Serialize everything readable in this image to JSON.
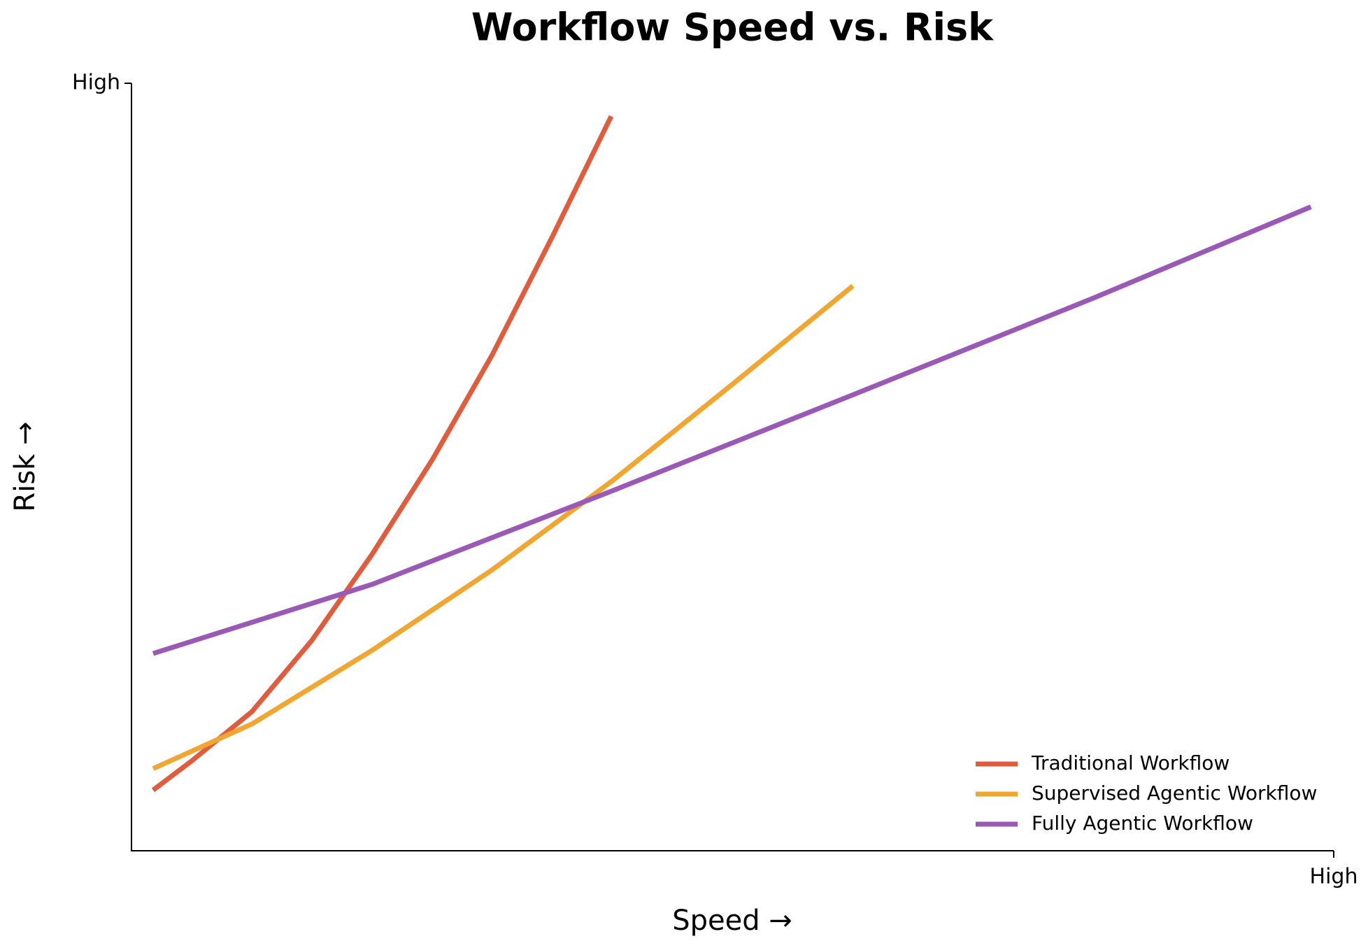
{
  "chart_data": {
    "type": "line",
    "title": "Workflow Speed vs. Risk",
    "xlabel": "Speed →",
    "ylabel": "Risk →",
    "xlim": [
      0,
      1
    ],
    "ylim": [
      0,
      1
    ],
    "xticks": [
      {
        "value": 1,
        "label": "High"
      }
    ],
    "yticks": [
      {
        "value": 1,
        "label": "High"
      }
    ],
    "grid": false,
    "legend": "lower right",
    "series": [
      {
        "name": "Traditional Workflow",
        "color": "#e05c3c",
        "x": [
          0.018,
          0.05,
          0.1,
          0.15,
          0.2,
          0.25,
          0.3,
          0.35,
          0.399
        ],
        "values": [
          0.079,
          0.117,
          0.181,
          0.274,
          0.386,
          0.509,
          0.646,
          0.8,
          0.957
        ]
      },
      {
        "name": "Supervised Agentic Workflow",
        "color": "#f0a630",
        "x": [
          0.018,
          0.1,
          0.2,
          0.3,
          0.4,
          0.5,
          0.6
        ],
        "values": [
          0.107,
          0.165,
          0.261,
          0.366,
          0.482,
          0.608,
          0.736
        ]
      },
      {
        "name": "Fully Agentic Workflow",
        "color": "#9b59b6",
        "x": [
          0.018,
          0.2,
          0.4,
          0.6,
          0.8,
          0.981
        ],
        "values": [
          0.257,
          0.347,
          0.469,
          0.594,
          0.72,
          0.839
        ]
      }
    ]
  }
}
